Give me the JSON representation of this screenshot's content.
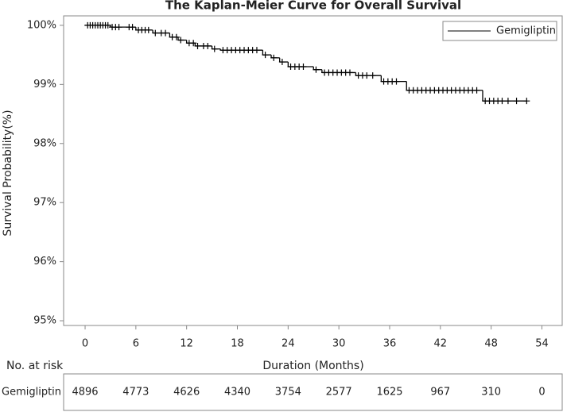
{
  "chart_data": {
    "type": "km",
    "title": "The Kaplan-Meier Curve for Overall Survival",
    "xlabel": "Duration (Months)",
    "ylabel": "Survival Probability(%)",
    "xlim": [
      -2.54,
      56.4
    ],
    "ylim": [
      94.92,
      100.16
    ],
    "xticks": [
      0,
      6,
      12,
      18,
      24,
      30,
      36,
      42,
      48,
      54
    ],
    "yticks": [
      {
        "value": 95,
        "label": "95%"
      },
      {
        "value": 96,
        "label": "96%"
      },
      {
        "value": 97,
        "label": "97%"
      },
      {
        "value": 98,
        "label": "98%"
      },
      {
        "value": 99,
        "label": "99%"
      },
      {
        "value": 100,
        "label": "100%"
      }
    ],
    "legend": "top-right",
    "series": [
      {
        "name": "Gemigliptin",
        "color": "#000000",
        "x": [
          0,
          3,
          6,
          8,
          10,
          11,
          12,
          13,
          15,
          16,
          21,
          22,
          23,
          24,
          27,
          28,
          32,
          35,
          38,
          47,
          52.2
        ],
        "values": [
          100,
          99.97,
          99.92,
          99.87,
          99.8,
          99.75,
          99.7,
          99.65,
          99.6,
          99.58,
          99.5,
          99.45,
          99.38,
          99.3,
          99.25,
          99.2,
          99.15,
          99.05,
          98.9,
          98.72,
          98.72
        ],
        "censored": {
          "x": [
            0.3,
            0.6,
            0.9,
            1.2,
            1.5,
            1.8,
            2.1,
            2.4,
            2.7,
            3.2,
            3.6,
            4.0,
            5.2,
            5.6,
            6.3,
            6.7,
            7.1,
            7.5,
            8.3,
            9.0,
            9.5,
            10.3,
            10.8,
            11.3,
            12.3,
            12.8,
            13.3,
            14.0,
            14.5,
            15.3,
            16.3,
            16.8,
            17.3,
            17.8,
            18.3,
            18.8,
            19.3,
            19.8,
            20.3,
            21.3,
            22.3,
            23.3,
            24.3,
            24.8,
            25.3,
            25.8,
            27.3,
            28.3,
            28.8,
            29.3,
            29.8,
            30.3,
            30.8,
            31.3,
            32.3,
            32.8,
            33.3,
            34,
            35.3,
            35.8,
            36.3,
            36.8,
            38.3,
            38.8,
            39.3,
            39.8,
            40.3,
            40.8,
            41.3,
            41.8,
            42.3,
            42.8,
            43.3,
            43.8,
            44.3,
            44.8,
            45.3,
            45.8,
            46.3,
            47.3,
            47.8,
            48.3,
            48.8,
            49.3,
            50.0,
            51.0,
            52.2
          ],
          "values": [
            100,
            100,
            100,
            100,
            100,
            100,
            100,
            100,
            100,
            99.97,
            99.97,
            99.97,
            99.97,
            99.97,
            99.92,
            99.92,
            99.92,
            99.92,
            99.87,
            99.87,
            99.87,
            99.8,
            99.8,
            99.75,
            99.7,
            99.7,
            99.65,
            99.65,
            99.65,
            99.6,
            99.58,
            99.58,
            99.58,
            99.58,
            99.58,
            99.58,
            99.58,
            99.58,
            99.58,
            99.5,
            99.45,
            99.38,
            99.3,
            99.3,
            99.3,
            99.3,
            99.25,
            99.2,
            99.2,
            99.2,
            99.2,
            99.2,
            99.2,
            99.2,
            99.15,
            99.15,
            99.15,
            99.15,
            99.05,
            99.05,
            99.05,
            99.05,
            98.9,
            98.9,
            98.9,
            98.9,
            98.9,
            98.9,
            98.9,
            98.9,
            98.9,
            98.9,
            98.9,
            98.9,
            98.9,
            98.9,
            98.9,
            98.9,
            98.9,
            98.72,
            98.72,
            98.72,
            98.72,
            98.72,
            98.72,
            98.72,
            98.72
          ]
        }
      }
    ],
    "risk_table": {
      "title": "No. at risk",
      "row_label": "Gemigliptin",
      "values": [
        4896,
        4773,
        4626,
        4340,
        3754,
        2577,
        1625,
        967,
        310,
        0
      ]
    }
  }
}
